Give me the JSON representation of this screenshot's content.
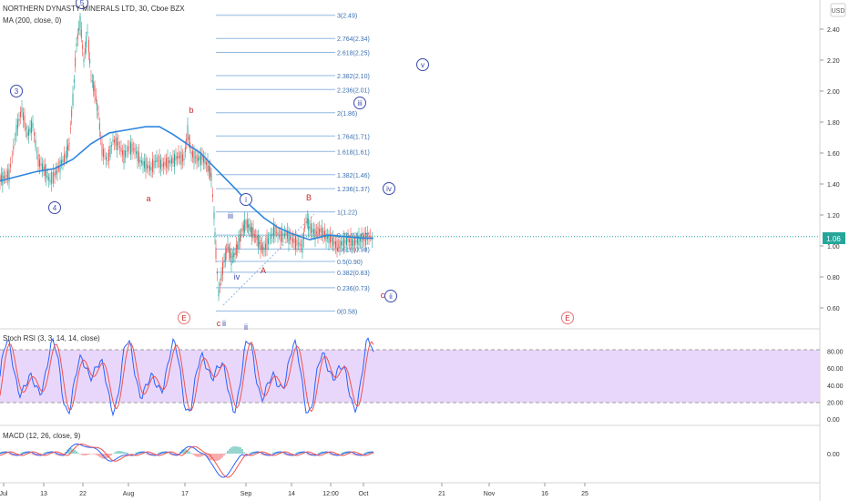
{
  "header": {
    "title": "NORTHERN DYNASTY MINERALS LTD, 30, Cboe BZX",
    "ma_label": "MA (200, close, 0)",
    "currency": "USD"
  },
  "price_axis": {
    "ticks": [
      "2.40",
      "2.20",
      "2.00",
      "1.80",
      "1.60",
      "1.40",
      "1.20",
      "1.00",
      "0.80",
      "0.60"
    ],
    "current": "1.06",
    "marker_value": 1.06
  },
  "rsi_panel": {
    "label": "Stoch RSI (3, 3, 14, 14, close)",
    "ticks": [
      "80.00",
      "60.00",
      "40.00",
      "20.00",
      "0.00"
    ]
  },
  "macd_panel": {
    "label": "MACD (12, 26, close, 9)",
    "ticks": [
      "0.00"
    ]
  },
  "time_axis": {
    "labels": [
      "Jul",
      "13",
      "22",
      "Aug",
      "17",
      "Sep",
      "14",
      "12:00",
      "Oct",
      "21",
      "Nov",
      "16",
      "25"
    ]
  },
  "fib_levels": [
    {
      "ratio": "3",
      "price": "2.49"
    },
    {
      "ratio": "2.764",
      "price": "2.34"
    },
    {
      "ratio": "2.618",
      "price": "2.25"
    },
    {
      "ratio": "2.382",
      "price": "2.10"
    },
    {
      "ratio": "2.236",
      "price": "2.01"
    },
    {
      "ratio": "2",
      "price": "1.86"
    },
    {
      "ratio": "1.764",
      "price": "1.71"
    },
    {
      "ratio": "1.618",
      "price": "1.61"
    },
    {
      "ratio": "1.382",
      "price": "1.46"
    },
    {
      "ratio": "1.236",
      "price": "1.37"
    },
    {
      "ratio": "1",
      "price": "1.22"
    },
    {
      "ratio": "0.764",
      "price": "1.07"
    },
    {
      "ratio": "0.618",
      "price": "0.98"
    },
    {
      "ratio": "0.5",
      "price": "0.90"
    },
    {
      "ratio": "0.382",
      "price": "0.83"
    },
    {
      "ratio": "0.236",
      "price": "0.73"
    },
    {
      "ratio": "0",
      "price": "0.58"
    }
  ],
  "wave_labels": {
    "circled_blue": [
      "3",
      "5",
      "4",
      "v",
      "iii",
      "iv",
      "ii",
      "i"
    ],
    "red": [
      "a",
      "b",
      "c",
      "A",
      "B",
      "E",
      "E"
    ],
    "blue": [
      "iii",
      "iv",
      "ii",
      "ii"
    ]
  },
  "colors": {
    "candle_up": "#26a69a",
    "candle_down": "#ef5350",
    "ma": "#2e86de",
    "fib": "#90b8e0",
    "rsi_band": "#e7d3fb",
    "rsi_k": "#2962ff",
    "rsi_d": "#ef5350",
    "wave_blue": "#3949ab",
    "wave_red": "#c62828"
  },
  "chart_data": {
    "type": "line",
    "title": "NORTHERN DYNASTY MINERALS LTD, 30, Cboe BZX",
    "x": [
      "Jul",
      "13",
      "22",
      "Aug",
      "17",
      "Sep",
      "14",
      "12:00",
      "Oct"
    ],
    "series": [
      {
        "name": "NORTHERN DYNASTY MINERALS LTD",
        "values": [
          1.45,
          1.55,
          2.35,
          1.62,
          1.58,
          0.95,
          1.05,
          1.08,
          1.06
        ]
      },
      {
        "name": "MA (200, close, 0)",
        "values": [
          1.42,
          1.5,
          1.62,
          1.76,
          1.62,
          1.3,
          1.08,
          1.04,
          1.05
        ]
      }
    ],
    "ylim": [
      0.52,
      2.52
    ],
    "grid": false,
    "legend": "top-left"
  }
}
